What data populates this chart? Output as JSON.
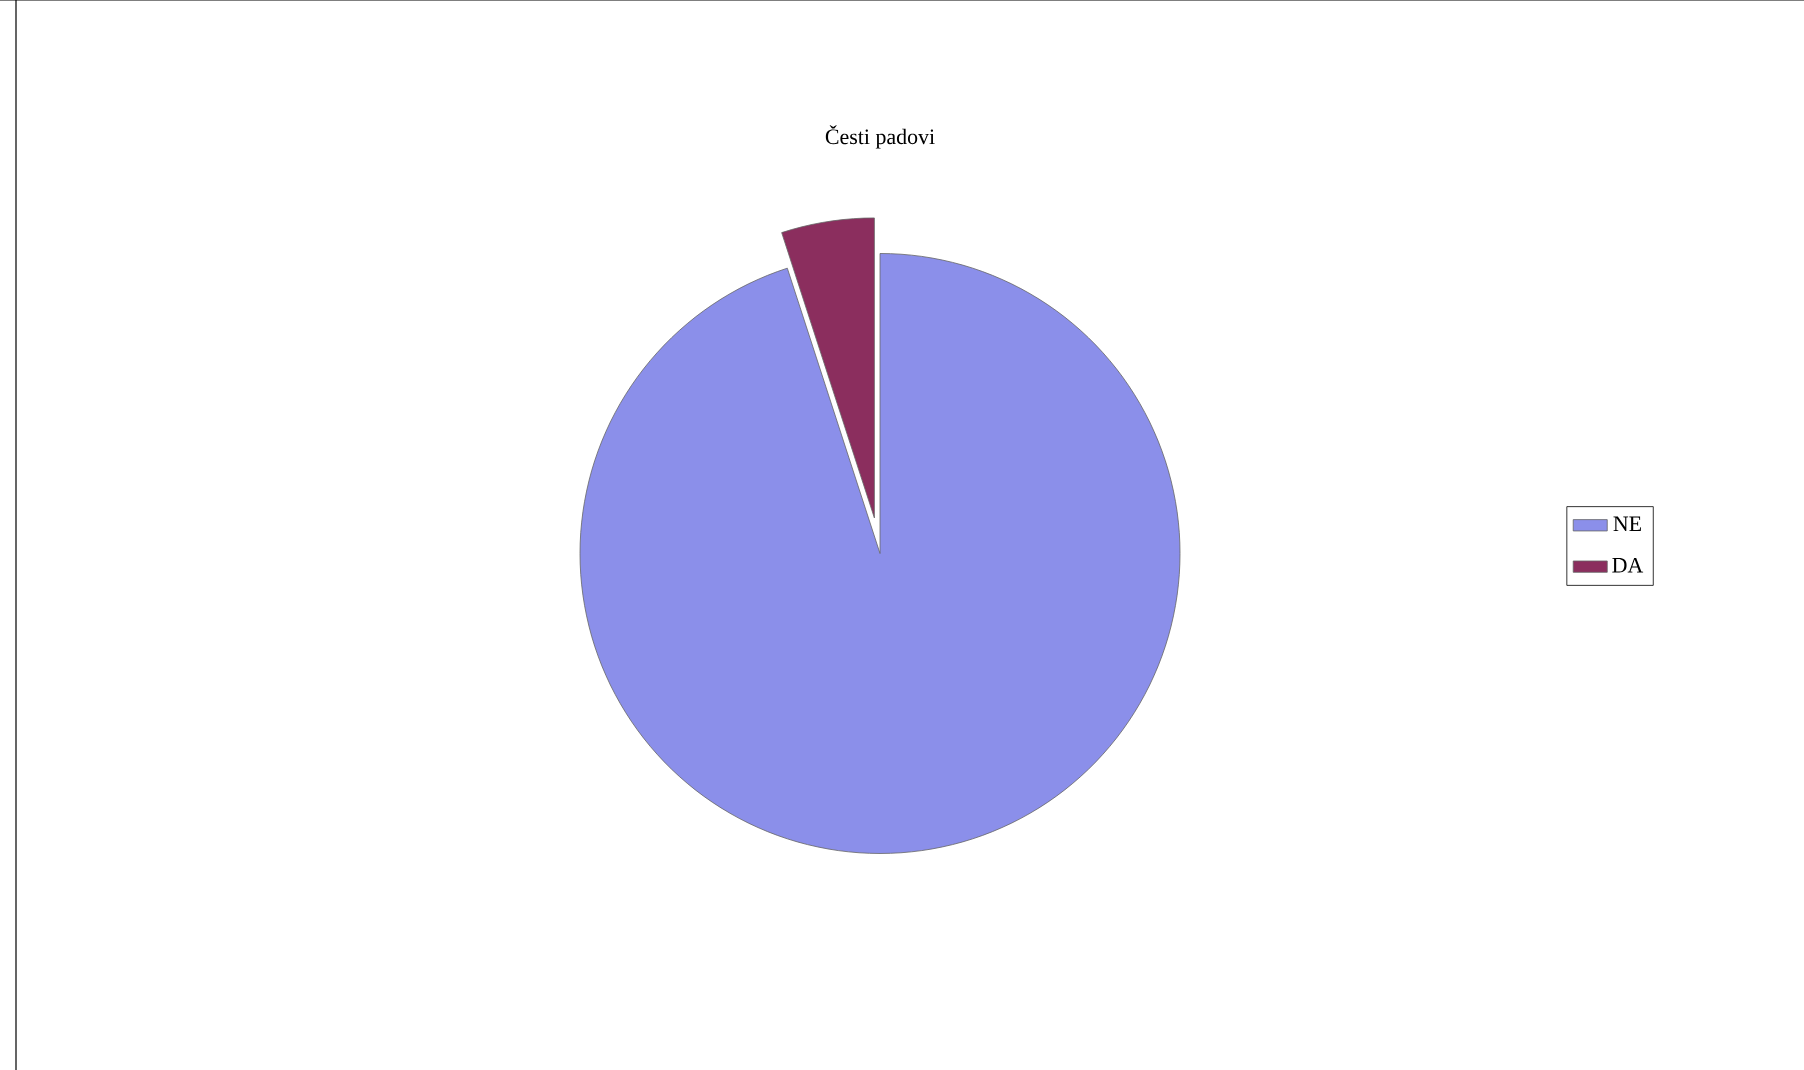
{
  "chart_data": {
    "type": "pie",
    "title": "Česti padovi",
    "categories": [
      "NE",
      "DA"
    ],
    "values": [
      95,
      5
    ],
    "colors": [
      "#8b8fea",
      "#8b2e5e"
    ],
    "legend": "right"
  }
}
